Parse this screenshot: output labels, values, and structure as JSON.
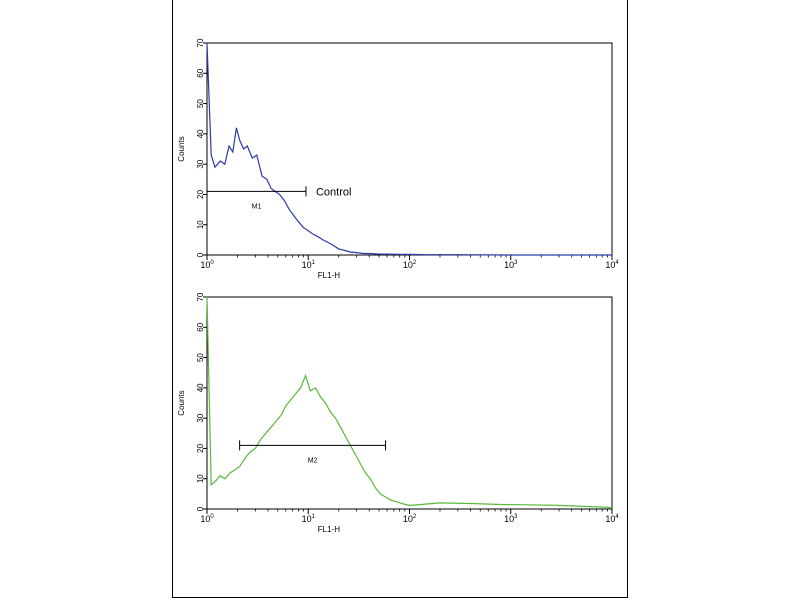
{
  "chart_data": [
    {
      "type": "line",
      "xscale": "log",
      "xlim": [
        1,
        10000
      ],
      "ylim": [
        0,
        70
      ],
      "xlabel": "FL1-H",
      "ylabel": "Counts",
      "yticks": [
        "0",
        "10",
        "20",
        "30",
        "40",
        "50",
        "60",
        "70"
      ],
      "xticks": [
        {
          "base": "10",
          "exp": "0"
        },
        {
          "base": "10",
          "exp": "1"
        },
        {
          "base": "10",
          "exp": "2"
        },
        {
          "base": "10",
          "exp": "3"
        },
        {
          "base": "10",
          "exp": "4"
        }
      ],
      "color": "#2a3aa8",
      "annotation": "Control",
      "marker": {
        "label": "M1",
        "x_start": 1,
        "x_end": 9.5,
        "y": 21
      },
      "series": [
        {
          "x": [
            1,
            1.1,
            1.2,
            1.35,
            1.5,
            1.65,
            1.8,
            1.95,
            2.1,
            2.3,
            2.5,
            2.8,
            3.1,
            3.5,
            3.9,
            4.3,
            4.7,
            5.2,
            5.8,
            6.5,
            7.2,
            8,
            9,
            10,
            11,
            12.5,
            14,
            16,
            18,
            20,
            23,
            26,
            30,
            35,
            40,
            50,
            60,
            80,
            100,
            150,
            300,
            1000,
            10000
          ],
          "y": [
            70,
            33,
            29,
            31,
            30,
            36,
            34,
            42,
            38,
            35,
            36,
            32,
            33,
            26,
            25,
            22,
            21,
            20,
            18,
            15,
            13,
            11,
            9,
            8,
            7,
            6,
            5,
            4,
            3,
            2,
            1.5,
            1,
            0.8,
            0.5,
            0.5,
            0.3,
            0.3,
            0.2,
            0.2,
            0.1,
            0.1,
            0,
            0
          ]
        }
      ]
    },
    {
      "type": "line",
      "xscale": "log",
      "xlim": [
        1,
        10000
      ],
      "ylim": [
        0,
        70
      ],
      "xlabel": "FL1-H",
      "ylabel": "Counts",
      "yticks": [
        "0",
        "10",
        "20",
        "30",
        "40",
        "50",
        "60",
        "70"
      ],
      "xticks": [
        {
          "base": "10",
          "exp": "0"
        },
        {
          "base": "10",
          "exp": "1"
        },
        {
          "base": "10",
          "exp": "2"
        },
        {
          "base": "10",
          "exp": "3"
        },
        {
          "base": "10",
          "exp": "4"
        }
      ],
      "color": "#5ab83a",
      "marker": {
        "label": "M2",
        "x_start": 2.1,
        "x_end": 58,
        "y": 21
      },
      "series": [
        {
          "x": [
            1,
            1.1,
            1.2,
            1.35,
            1.5,
            1.7,
            1.9,
            2.1,
            2.4,
            2.7,
            3,
            3.4,
            3.8,
            4.3,
            4.8,
            5.4,
            6,
            6.7,
            7.5,
            8.4,
            9.4,
            10.5,
            11.8,
            13.2,
            14.8,
            16.6,
            18.6,
            20.8,
            23.3,
            26.1,
            29.2,
            32.7,
            36.6,
            41,
            46,
            51.5,
            57.7,
            64.6,
            72.4,
            81,
            90.8,
            101.7,
            130,
            200,
            400,
            800,
            1500,
            3000,
            6000,
            10000
          ],
          "y": [
            70,
            8,
            9,
            11,
            10,
            12,
            13,
            14,
            17,
            19,
            20,
            23,
            25,
            27,
            29,
            31,
            34,
            36,
            38,
            40,
            44,
            39,
            40,
            37,
            35,
            32,
            30,
            27,
            24,
            21,
            18,
            15,
            12,
            10,
            7,
            5,
            4,
            3,
            2.5,
            2,
            1.5,
            1.2,
            1.5,
            2,
            1.8,
            1.5,
            1.4,
            1.2,
            0.8,
            0.5
          ]
        }
      ]
    }
  ]
}
